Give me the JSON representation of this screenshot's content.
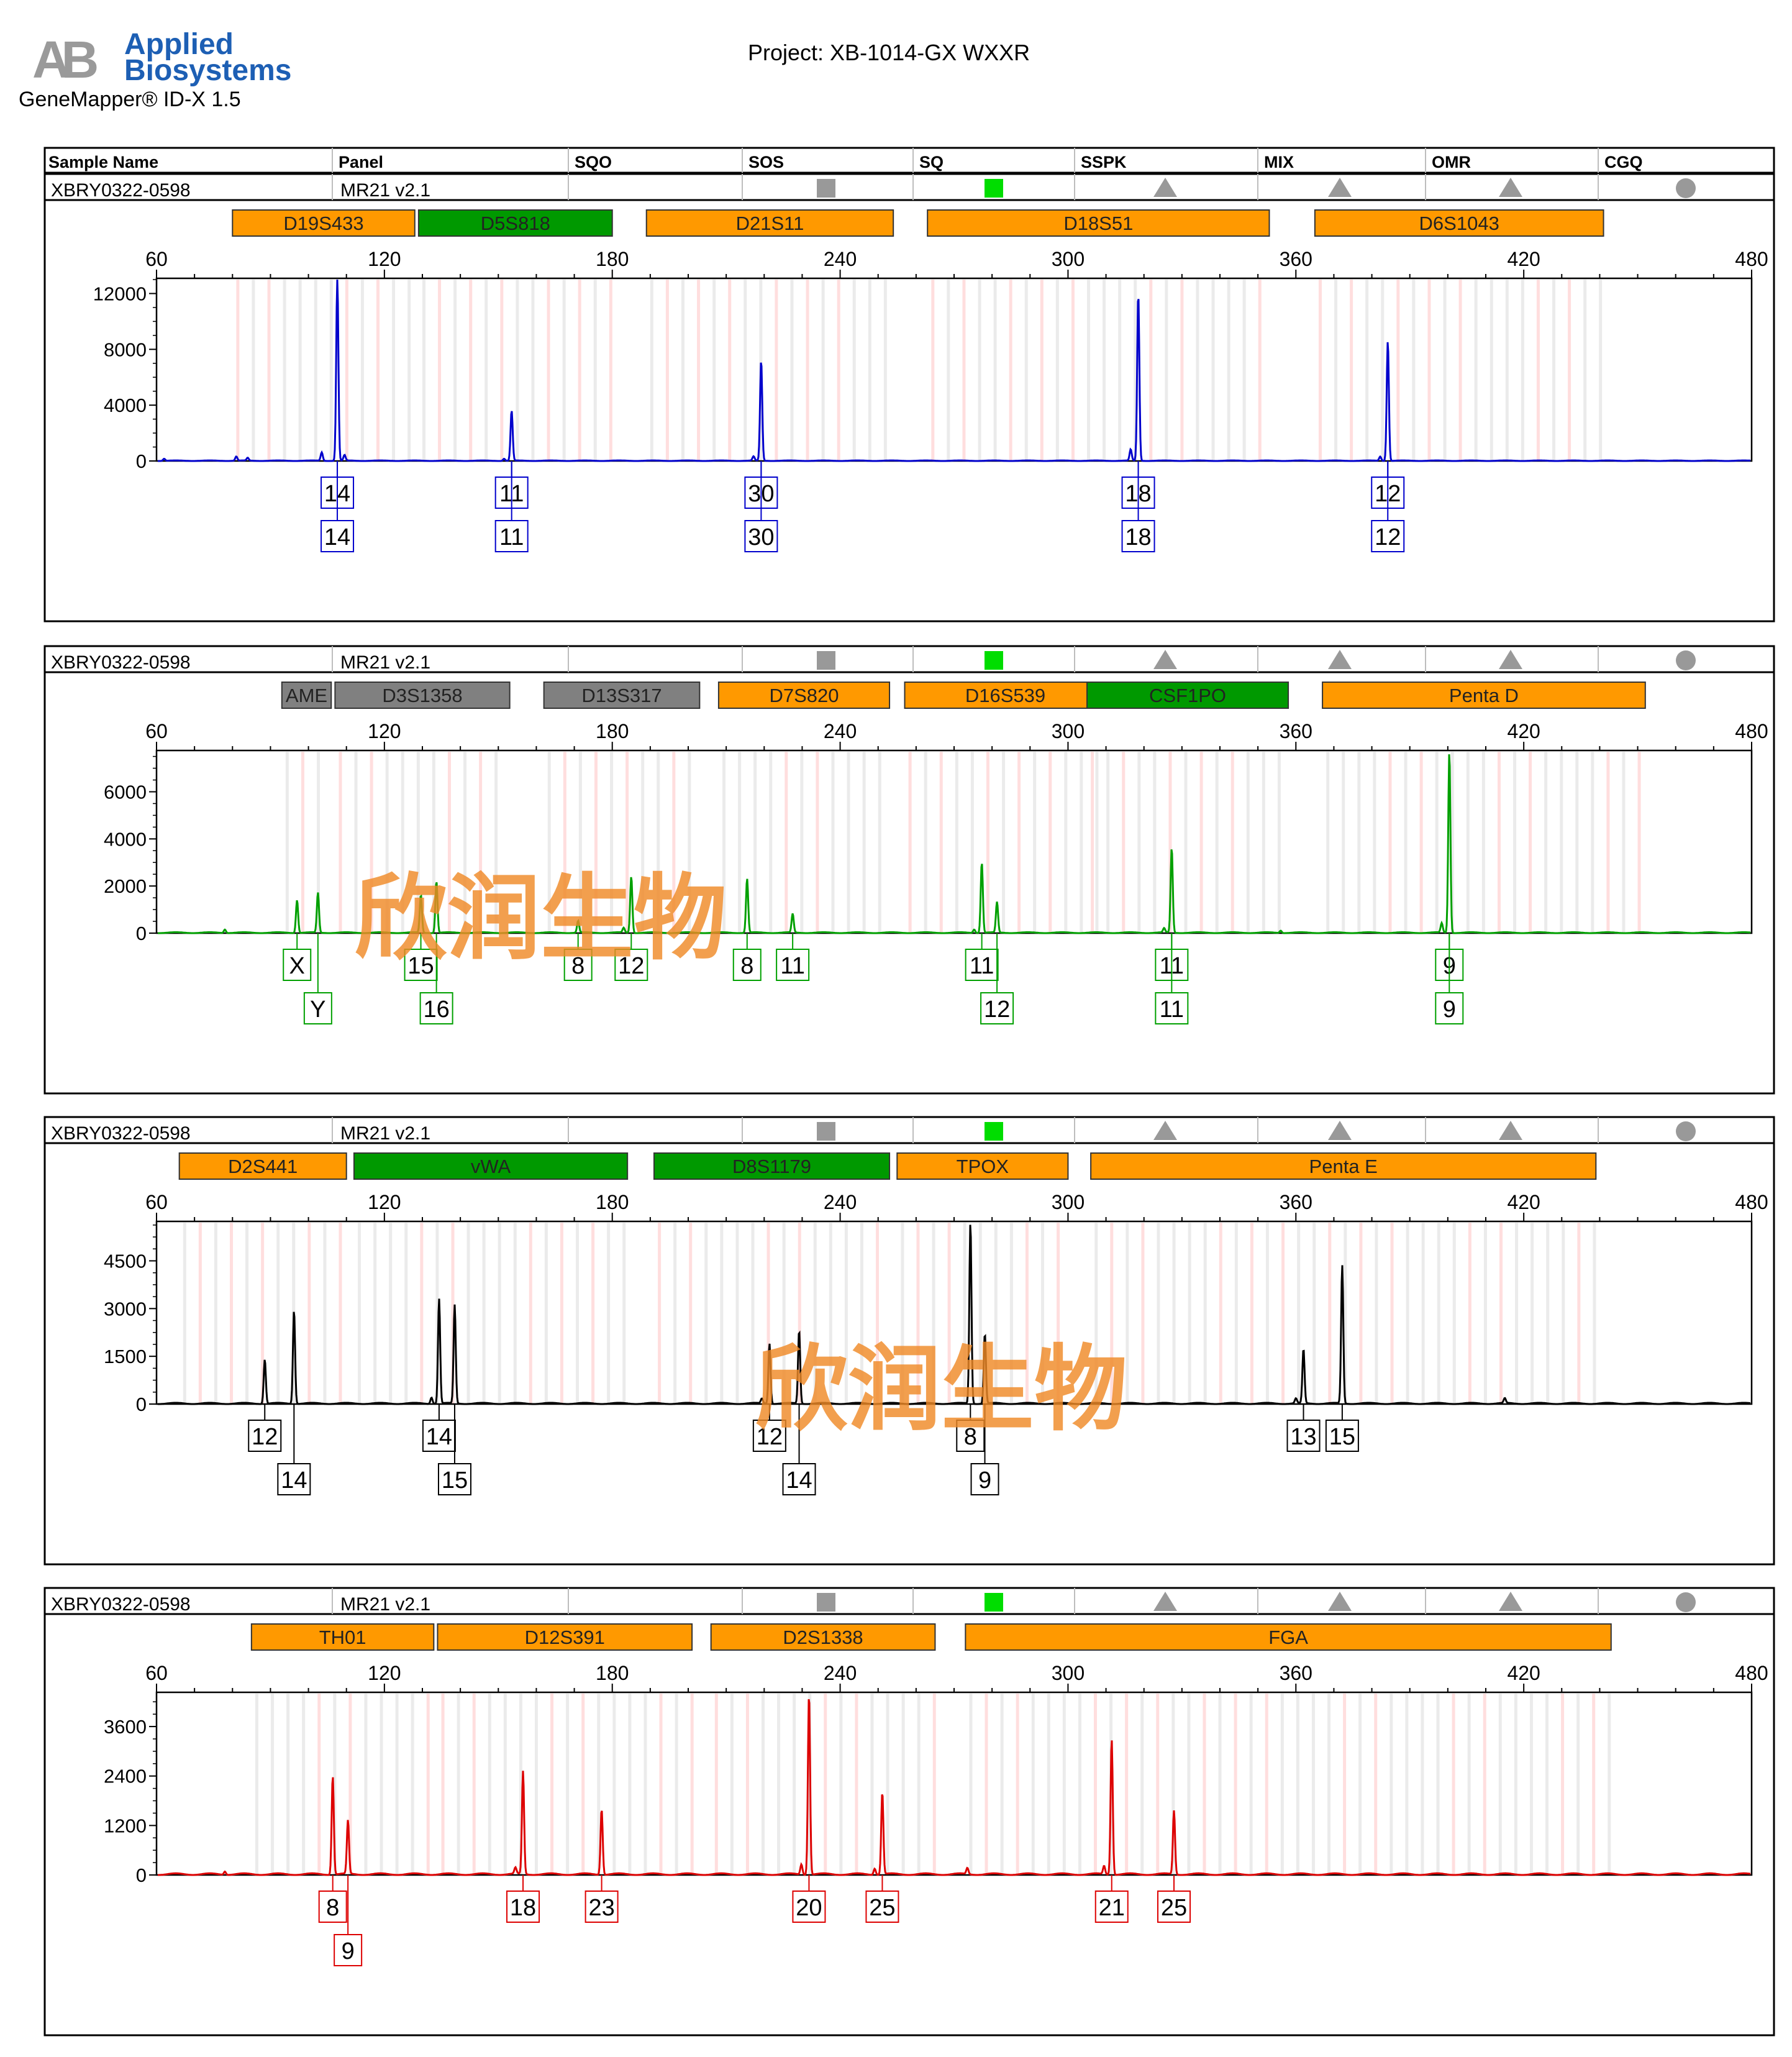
{
  "header": {
    "logo_mark": "AB",
    "logo_brand_line1": "Applied",
    "logo_brand_line2": "Biosystems",
    "software": "GeneMapper® ID-X  1.5",
    "project": "Project: XB-1014-GX WXXR"
  },
  "table_header": {
    "columns": [
      "Sample Name",
      "Panel",
      "SQO",
      "SOS",
      "SQ",
      "SSPK",
      "MIX",
      "OMR",
      "CGQ"
    ]
  },
  "watermark": "欣润生物",
  "colors": {
    "orange": "#ff9900",
    "green": "#009900",
    "gray": "#808080",
    "blue": "#0000cc",
    "greenTrace": "#00a000",
    "black": "#000000",
    "red": "#dd0000",
    "watermark": "#f08a28"
  },
  "panels": [
    {
      "sample": "XBRY0322-0598",
      "panel_name": "MR21  v2.1",
      "quality_flags": [
        "square-gray",
        "square-green",
        "triangle-gray",
        "triangle-gray",
        "triangle-gray",
        "circle-gray"
      ],
      "watermark": false,
      "chart_data": {
        "type": "line",
        "dye": "blue",
        "xlim": [
          60,
          480
        ],
        "x_ticks": [
          60,
          120,
          180,
          240,
          300,
          360,
          420,
          480
        ],
        "ylim": [
          0,
          13000
        ],
        "y_ticks": [
          0,
          4000,
          8000,
          12000
        ],
        "markers": [
          {
            "name": "D19S433",
            "start": 80,
            "end": 128,
            "color": "orange"
          },
          {
            "name": "D5S818",
            "start": 129,
            "end": 180,
            "color": "green"
          },
          {
            "name": "D21S11",
            "start": 189,
            "end": 254,
            "color": "orange"
          },
          {
            "name": "D18S51",
            "start": 263,
            "end": 353,
            "color": "orange"
          },
          {
            "name": "D6S1043",
            "start": 365,
            "end": 441,
            "color": "orange"
          }
        ],
        "peaks": [
          {
            "x": 107.6,
            "y": 13200
          },
          {
            "x": 103.5,
            "y": 600
          },
          {
            "x": 109.5,
            "y": 400
          },
          {
            "x": 81,
            "y": 300
          },
          {
            "x": 84,
            "y": 200
          },
          {
            "x": 62,
            "y": 150
          },
          {
            "x": 153.5,
            "y": 3600
          },
          {
            "x": 151.5,
            "y": 150
          },
          {
            "x": 219.2,
            "y": 7200
          },
          {
            "x": 217.2,
            "y": 300
          },
          {
            "x": 318.5,
            "y": 12000
          },
          {
            "x": 316.5,
            "y": 800
          },
          {
            "x": 384.2,
            "y": 8600
          },
          {
            "x": 382.2,
            "y": 300
          }
        ],
        "allele_rows": [
          [
            {
              "x": 107.6,
              "label": "14"
            },
            {
              "x": 153.5,
              "label": "11"
            },
            {
              "x": 219.2,
              "label": "30"
            },
            {
              "x": 318.5,
              "label": "18"
            },
            {
              "x": 384.2,
              "label": "12"
            }
          ],
          [
            {
              "x": 107.6,
              "label": "14"
            },
            {
              "x": 153.5,
              "label": "11"
            },
            {
              "x": 219.2,
              "label": "30"
            },
            {
              "x": 318.5,
              "label": "18"
            },
            {
              "x": 384.2,
              "label": "12"
            }
          ]
        ]
      }
    },
    {
      "sample": "XBRY0322-0598",
      "panel_name": "MR21  v2.1",
      "quality_flags": [
        "square-gray",
        "square-green",
        "triangle-gray",
        "triangle-gray",
        "triangle-gray",
        "circle-gray"
      ],
      "watermark": true,
      "chart_data": {
        "type": "line",
        "dye": "greenTrace",
        "xlim": [
          60,
          480
        ],
        "x_ticks": [
          60,
          120,
          180,
          240,
          300,
          360,
          420,
          480
        ],
        "ylim": [
          0,
          7700
        ],
        "y_ticks": [
          0,
          2000,
          4000,
          6000
        ],
        "markers": [
          {
            "name": "AME",
            "start": 93,
            "end": 106,
            "color": "gray"
          },
          {
            "name": "D3S1358",
            "start": 107,
            "end": 153,
            "color": "gray"
          },
          {
            "name": "D13S317",
            "start": 162,
            "end": 203,
            "color": "gray"
          },
          {
            "name": "D7S820",
            "start": 208,
            "end": 253,
            "color": "orange"
          },
          {
            "name": "D16S539",
            "start": 257,
            "end": 310,
            "color": "orange"
          },
          {
            "name": "CSF1PO",
            "start": 305,
            "end": 358,
            "color": "green"
          },
          {
            "name": "Penta D",
            "start": 367,
            "end": 452,
            "color": "orange"
          }
        ],
        "peaks": [
          {
            "x": 97,
            "y": 1400
          },
          {
            "x": 102.5,
            "y": 1700
          },
          {
            "x": 129.6,
            "y": 1600
          },
          {
            "x": 133.7,
            "y": 2200
          },
          {
            "x": 171,
            "y": 500
          },
          {
            "x": 185,
            "y": 2400
          },
          {
            "x": 183,
            "y": 200
          },
          {
            "x": 215.5,
            "y": 2300
          },
          {
            "x": 227.5,
            "y": 800
          },
          {
            "x": 277.3,
            "y": 3000
          },
          {
            "x": 281.3,
            "y": 1300
          },
          {
            "x": 275.3,
            "y": 150
          },
          {
            "x": 327.3,
            "y": 3600
          },
          {
            "x": 325.3,
            "y": 180
          },
          {
            "x": 400.4,
            "y": 7700
          },
          {
            "x": 398.4,
            "y": 400
          },
          {
            "x": 78,
            "y": 150
          },
          {
            "x": 356,
            "y": 100
          }
        ],
        "allele_rows": [
          [
            {
              "x": 97,
              "label": "X"
            },
            {
              "x": 129.6,
              "label": "15"
            },
            {
              "x": 171,
              "label": "8"
            },
            {
              "x": 185,
              "label": "12"
            },
            {
              "x": 215.5,
              "label": "8"
            },
            {
              "x": 227.5,
              "label": "11"
            },
            {
              "x": 277.3,
              "label": "11"
            },
            {
              "x": 327.3,
              "label": "11"
            },
            {
              "x": 400.4,
              "label": "9"
            }
          ],
          [
            {
              "x": 102.5,
              "label": "Y"
            },
            {
              "x": 133.7,
              "label": "16"
            },
            {
              "x": 281.3,
              "label": "12"
            },
            {
              "x": 327.3,
              "label": "11"
            },
            {
              "x": 400.4,
              "label": "9"
            }
          ]
        ]
      }
    },
    {
      "sample": "XBRY0322-0598",
      "panel_name": "MR21  v2.1",
      "quality_flags": [
        "square-gray",
        "square-green",
        "triangle-gray",
        "triangle-gray",
        "triangle-gray",
        "circle-gray"
      ],
      "watermark": true,
      "chart_data": {
        "type": "line",
        "dye": "black",
        "xlim": [
          60,
          480
        ],
        "x_ticks": [
          60,
          120,
          180,
          240,
          300,
          360,
          420,
          480
        ],
        "ylim": [
          0,
          5700
        ],
        "y_ticks": [
          0,
          1500,
          3000,
          4500
        ],
        "markers": [
          {
            "name": "D2S441",
            "start": 66,
            "end": 110,
            "color": "orange"
          },
          {
            "name": "vWA",
            "start": 112,
            "end": 184,
            "color": "green"
          },
          {
            "name": "D8S1179",
            "start": 191,
            "end": 253,
            "color": "green"
          },
          {
            "name": "TPOX",
            "start": 255,
            "end": 300,
            "color": "orange"
          },
          {
            "name": "Penta E",
            "start": 306,
            "end": 439,
            "color": "orange"
          }
        ],
        "peaks": [
          {
            "x": 88.5,
            "y": 1400
          },
          {
            "x": 96.2,
            "y": 2950
          },
          {
            "x": 134.4,
            "y": 3300
          },
          {
            "x": 138.5,
            "y": 3100
          },
          {
            "x": 221.4,
            "y": 1900
          },
          {
            "x": 229.2,
            "y": 2300
          },
          {
            "x": 274.3,
            "y": 5700
          },
          {
            "x": 278.1,
            "y": 2200
          },
          {
            "x": 362,
            "y": 1700
          },
          {
            "x": 372.2,
            "y": 4350
          },
          {
            "x": 132.4,
            "y": 200
          },
          {
            "x": 219.4,
            "y": 150
          },
          {
            "x": 360,
            "y": 150
          },
          {
            "x": 415,
            "y": 150
          }
        ],
        "allele_rows": [
          [
            {
              "x": 88.5,
              "label": "12"
            },
            {
              "x": 134.4,
              "label": "14"
            },
            {
              "x": 221.4,
              "label": "12"
            },
            {
              "x": 274.3,
              "label": "8"
            },
            {
              "x": 362,
              "label": "13"
            },
            {
              "x": 372.2,
              "label": "15"
            }
          ],
          [
            {
              "x": 96.2,
              "label": "14"
            },
            {
              "x": 138.5,
              "label": "15"
            },
            {
              "x": 229.2,
              "label": "14"
            },
            {
              "x": 278.1,
              "label": "9"
            }
          ]
        ]
      }
    },
    {
      "sample": "XBRY0322-0598",
      "panel_name": "MR21  v2.1",
      "quality_flags": [
        "square-gray",
        "square-green",
        "triangle-gray",
        "triangle-gray",
        "triangle-gray",
        "circle-gray"
      ],
      "watermark": false,
      "chart_data": {
        "type": "line",
        "dye": "red",
        "xlim": [
          60,
          480
        ],
        "x_ticks": [
          60,
          120,
          180,
          240,
          300,
          360,
          420,
          480
        ],
        "ylim": [
          0,
          4400
        ],
        "y_ticks": [
          0,
          1200,
          2400,
          3600
        ],
        "markers": [
          {
            "name": "TH01",
            "start": 85,
            "end": 133,
            "color": "orange"
          },
          {
            "name": "D12S391",
            "start": 134,
            "end": 201,
            "color": "orange"
          },
          {
            "name": "D2S1338",
            "start": 206,
            "end": 265,
            "color": "orange"
          },
          {
            "name": "FGA",
            "start": 273,
            "end": 443,
            "color": "orange"
          }
        ],
        "peaks": [
          {
            "x": 106.4,
            "y": 2400
          },
          {
            "x": 110.4,
            "y": 1300
          },
          {
            "x": 156.5,
            "y": 2500
          },
          {
            "x": 177.2,
            "y": 1600
          },
          {
            "x": 231.8,
            "y": 4400
          },
          {
            "x": 251.1,
            "y": 2000
          },
          {
            "x": 311.5,
            "y": 3300
          },
          {
            "x": 327.9,
            "y": 1550
          },
          {
            "x": 154.5,
            "y": 150
          },
          {
            "x": 229.8,
            "y": 250
          },
          {
            "x": 249.1,
            "y": 150
          },
          {
            "x": 309.5,
            "y": 200
          },
          {
            "x": 273.5,
            "y": 150
          },
          {
            "x": 78,
            "y": 80
          }
        ],
        "allele_rows": [
          [
            {
              "x": 106.4,
              "label": "8"
            },
            {
              "x": 156.5,
              "label": "18"
            },
            {
              "x": 177.2,
              "label": "23"
            },
            {
              "x": 231.8,
              "label": "20"
            },
            {
              "x": 251.1,
              "label": "25"
            },
            {
              "x": 311.5,
              "label": "21"
            },
            {
              "x": 327.9,
              "label": "25"
            }
          ],
          [
            {
              "x": 110.4,
              "label": "9"
            }
          ]
        ]
      }
    }
  ]
}
